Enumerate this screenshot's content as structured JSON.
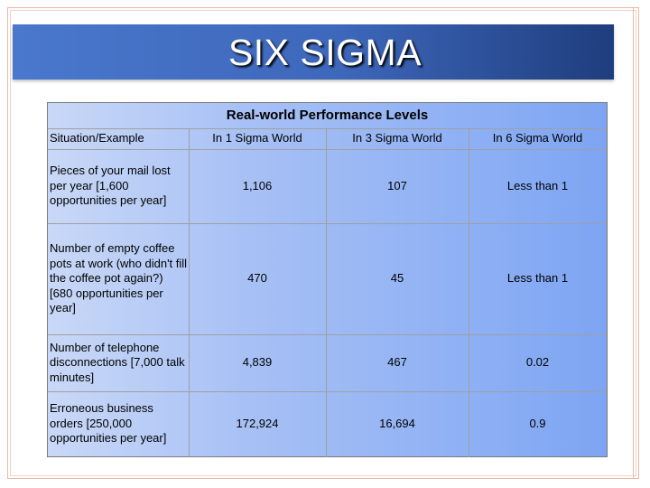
{
  "slide": {
    "title": "SIX SIGMA"
  },
  "table": {
    "caption": "Real-world Performance Levels",
    "headers": [
      "Situation/Example",
      "In 1 Sigma World",
      "In 3 Sigma World",
      "In 6 Sigma World"
    ],
    "rows": [
      {
        "situation": "Pieces of your mail lost per year [1,600 opportunities per year]",
        "sigma1": "1,106",
        "sigma3": "107",
        "sigma6": "Less than 1"
      },
      {
        "situation": "Number of empty coffee pots at work (who didn't fill the coffee pot again?) [680 opportunities per year]",
        "sigma1": "470",
        "sigma3": "45",
        "sigma6": "Less than 1"
      },
      {
        "situation": "Number of telephone disconnections [7,000 talk minutes]",
        "sigma1": "4,839",
        "sigma3": "467",
        "sigma6": "0.02"
      },
      {
        "situation": "Erroneous business orders [250,000 opportunities per year]",
        "sigma1": "172,924",
        "sigma3": "16,694",
        "sigma6": "0.9"
      }
    ]
  },
  "colors": {
    "title_bar_start": "#4a78cc",
    "title_bar_end": "#1f3d7e",
    "table_start": "#c9d8f7",
    "table_end": "#7ea5f3",
    "frame": "#e7b9a7"
  }
}
